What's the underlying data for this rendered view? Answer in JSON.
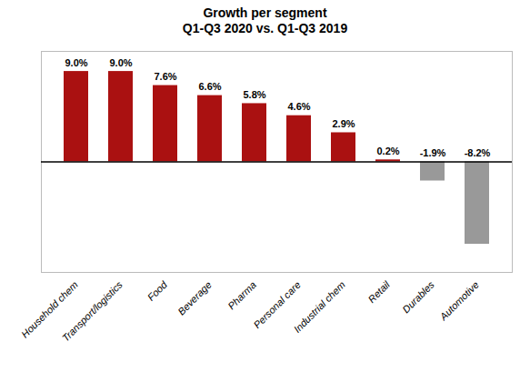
{
  "chart_data": {
    "type": "bar",
    "title": "Growth per segment",
    "subtitle": "Q1-Q3 2020 vs. Q1-Q3 2019",
    "categories": [
      "Household chem",
      "Transport/logistics",
      "Food",
      "Beverage",
      "Pharma",
      "Personal care",
      "Industrial chem",
      "Retail",
      "Durables",
      "Automotive"
    ],
    "values": [
      9.0,
      9.0,
      7.6,
      6.6,
      5.8,
      4.6,
      2.9,
      0.2,
      -1.9,
      -8.2
    ],
    "value_labels": [
      "9.0%",
      "9.0%",
      "7.6%",
      "6.6%",
      "5.8%",
      "4.6%",
      "2.9%",
      "0.2%",
      "-1.9%",
      "-8.2%"
    ],
    "colors": [
      "#aa1111",
      "#aa1111",
      "#aa1111",
      "#aa1111",
      "#aa1111",
      "#aa1111",
      "#aa1111",
      "#aa1111",
      "#999999",
      "#999999"
    ],
    "ylim": [
      -11,
      11
    ],
    "data_labels": true,
    "tick_labels": "x",
    "grid": false
  }
}
